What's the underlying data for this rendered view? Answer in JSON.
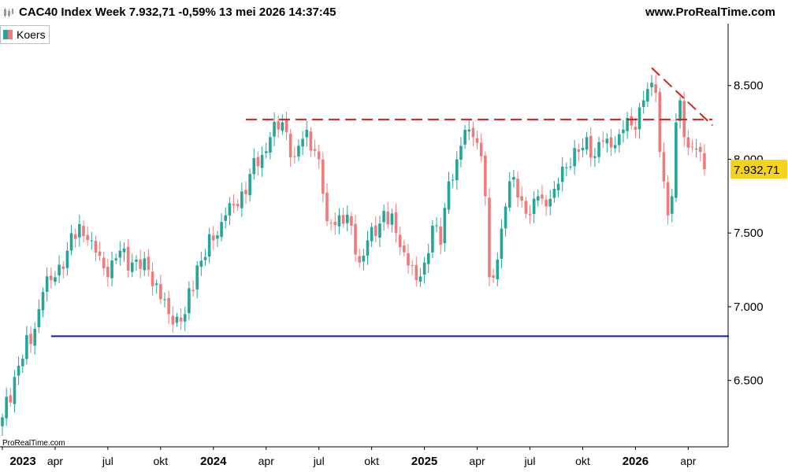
{
  "header": {
    "title": "CAC40 Index Week 7.932,71 -0,59% 13 mei 2026 14:37:45",
    "brand": "www.ProRealTime.com"
  },
  "legend": {
    "label": "Koers"
  },
  "watermark": "ProRealTime.com",
  "colors": {
    "up": "#26a69a",
    "down": "#ef7b7b",
    "resistance": "#d61f1f",
    "support": "#1515c8",
    "price_tag_bg": "#f5d21e",
    "axis": "#000000"
  },
  "chart_data": {
    "type": "candlestick",
    "instrument": "CAC40 Index",
    "interval": "Week",
    "last_price": 7932.71,
    "last_price_label": "7.932,71",
    "ylim": [
      6050,
      8920
    ],
    "y_ticks": [
      {
        "value": 6500,
        "label": "6.500"
      },
      {
        "value": 7000,
        "label": "7.000"
      },
      {
        "value": 7500,
        "label": "7.500"
      },
      {
        "value": 8000,
        "label": "8.000"
      },
      {
        "value": 8500,
        "label": "8.500"
      }
    ],
    "x_ticks": [
      {
        "week": 0,
        "label": "2023",
        "year": true
      },
      {
        "week": 13,
        "label": "apr",
        "year": false
      },
      {
        "week": 26,
        "label": "jul",
        "year": false
      },
      {
        "week": 39,
        "label": "okt",
        "year": false
      },
      {
        "week": 52,
        "label": "2024",
        "year": true
      },
      {
        "week": 65,
        "label": "apr",
        "year": false
      },
      {
        "week": 78,
        "label": "jul",
        "year": false
      },
      {
        "week": 91,
        "label": "okt",
        "year": false
      },
      {
        "week": 104,
        "label": "2025",
        "year": true
      },
      {
        "week": 117,
        "label": "apr",
        "year": false
      },
      {
        "week": 130,
        "label": "jul",
        "year": false
      },
      {
        "week": 143,
        "label": "okt",
        "year": false
      },
      {
        "week": 156,
        "label": "2026",
        "year": true
      },
      {
        "week": 169,
        "label": "apr",
        "year": false
      }
    ],
    "anchors": [
      [
        0,
        6250
      ],
      [
        4,
        6600
      ],
      [
        8,
        6850
      ],
      [
        10,
        7100
      ],
      [
        13,
        7200
      ],
      [
        16,
        7380
      ],
      [
        19,
        7560
      ],
      [
        22,
        7450
      ],
      [
        26,
        7200
      ],
      [
        29,
        7380
      ],
      [
        32,
        7300
      ],
      [
        36,
        7250
      ],
      [
        39,
        7050
      ],
      [
        42,
        6880
      ],
      [
        45,
        6950
      ],
      [
        48,
        7280
      ],
      [
        52,
        7450
      ],
      [
        55,
        7620
      ],
      [
        58,
        7680
      ],
      [
        61,
        7900
      ],
      [
        64,
        8030
      ],
      [
        66,
        8150
      ],
      [
        69,
        8250
      ],
      [
        72,
        8020
      ],
      [
        75,
        8200
      ],
      [
        78,
        8000
      ],
      [
        80,
        7580
      ],
      [
        83,
        7620
      ],
      [
        86,
        7550
      ],
      [
        88,
        7300
      ],
      [
        90,
        7450
      ],
      [
        92,
        7480
      ],
      [
        94,
        7650
      ],
      [
        97,
        7500
      ],
      [
        100,
        7280
      ],
      [
        102,
        7180
      ],
      [
        104,
        7300
      ],
      [
        106,
        7550
      ],
      [
        108,
        7420
      ],
      [
        110,
        7850
      ],
      [
        112,
        8000
      ],
      [
        114,
        8200
      ],
      [
        116,
        8150
      ],
      [
        118,
        8020
      ],
      [
        119,
        7750
      ],
      [
        120,
        7200
      ],
      [
        122,
        7320
      ],
      [
        124,
        7680
      ],
      [
        126,
        7880
      ],
      [
        128,
        7720
      ],
      [
        130,
        7620
      ],
      [
        132,
        7750
      ],
      [
        134,
        7680
      ],
      [
        136,
        7800
      ],
      [
        138,
        7950
      ],
      [
        140,
        7950
      ],
      [
        142,
        8050
      ],
      [
        144,
        8150
      ],
      [
        146,
        8020
      ],
      [
        148,
        8120
      ],
      [
        150,
        8080
      ],
      [
        152,
        8170
      ],
      [
        154,
        8280
      ],
      [
        156,
        8200
      ],
      [
        158,
        8400
      ],
      [
        160,
        8520
      ],
      [
        161,
        8450
      ],
      [
        162,
        8050
      ],
      [
        163,
        7850
      ],
      [
        164,
        7620
      ],
      [
        165,
        7750
      ],
      [
        166,
        8250
      ],
      [
        167,
        8400
      ],
      [
        168,
        8150
      ],
      [
        170,
        8080
      ],
      [
        172,
        8050
      ],
      [
        173,
        7932.71
      ]
    ],
    "annotations": [
      {
        "name": "resistance",
        "style": "dashed",
        "from": [
          60,
          8270
        ],
        "to": [
          175,
          8270
        ]
      },
      {
        "name": "trendline",
        "style": "dashed",
        "from": [
          160,
          8620
        ],
        "to": [
          175,
          8230
        ]
      },
      {
        "name": "support",
        "style": "solid",
        "from": [
          12,
          6800
        ],
        "to": [
          179,
          6800
        ]
      }
    ]
  }
}
